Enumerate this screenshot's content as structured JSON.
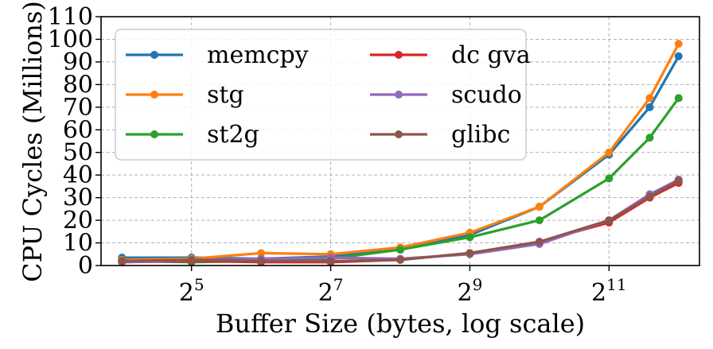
{
  "chart_data": {
    "type": "line",
    "title": "",
    "xlabel": "Buffer Size (bytes, log scale)",
    "ylabel": "CPU Cycles (Millions)",
    "xscale": "log2",
    "ylim": [
      0,
      110
    ],
    "y_ticks": [
      0,
      10,
      20,
      30,
      40,
      50,
      60,
      70,
      80,
      90,
      100,
      110
    ],
    "x_ticks": [
      {
        "base": "2",
        "exp": "5"
      },
      {
        "base": "2",
        "exp": "7"
      },
      {
        "base": "2",
        "exp": "9"
      },
      {
        "base": "2",
        "exp": "11"
      }
    ],
    "grid": true,
    "legend": {
      "position": "top-left",
      "columns": 2
    },
    "x": [
      16,
      32,
      64,
      128,
      256,
      512,
      1024,
      2048,
      3072,
      4096
    ],
    "series": [
      {
        "name": "memcpy",
        "color": "#1f77b4",
        "values": [
          3.5,
          3.5,
          3.0,
          4.0,
          7.0,
          13.5,
          26.0,
          49.0,
          70.0,
          92.5
        ]
      },
      {
        "name": "stg",
        "color": "#ff7f0e",
        "values": [
          2.5,
          3.0,
          5.5,
          5.0,
          8.0,
          14.5,
          26.0,
          50.0,
          74.0,
          98.0
        ]
      },
      {
        "name": "st2g",
        "color": "#2ca02c",
        "values": [
          2.0,
          1.5,
          2.0,
          3.0,
          7.0,
          12.5,
          20.0,
          38.5,
          56.5,
          74.0
        ]
      },
      {
        "name": "dc gva",
        "color": "#d62728",
        "values": [
          1.5,
          2.0,
          1.5,
          1.5,
          2.5,
          5.5,
          10.5,
          19.0,
          30.0,
          36.5
        ]
      },
      {
        "name": "scudo",
        "color": "#9467bd",
        "values": [
          1.5,
          2.5,
          3.0,
          3.5,
          3.0,
          5.0,
          9.5,
          20.0,
          31.5,
          38.0
        ]
      },
      {
        "name": "glibc",
        "color": "#8c564b",
        "values": [
          2.0,
          2.5,
          2.0,
          2.0,
          2.5,
          5.5,
          10.5,
          20.0,
          30.5,
          37.5
        ]
      }
    ]
  }
}
